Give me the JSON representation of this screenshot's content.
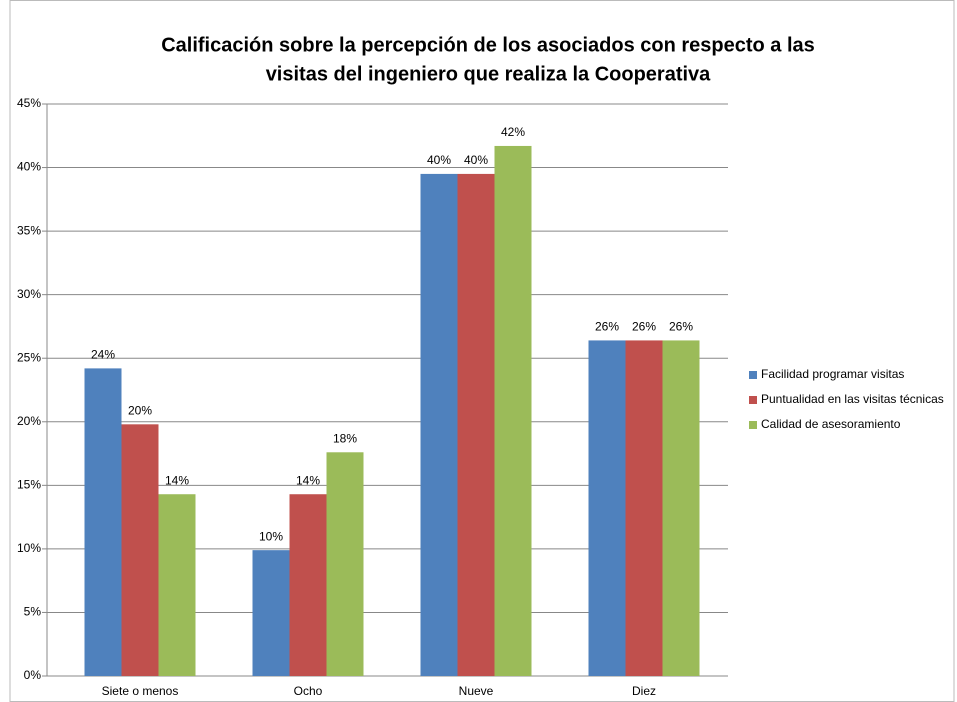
{
  "chart_data": {
    "type": "bar",
    "title": [
      "Calificación sobre la percepción  de los asociados con respecto a las",
      "visitas del ingeniero que realiza la Cooperativa"
    ],
    "categories": [
      "Siete o menos",
      "Ocho",
      "Nueve",
      "Diez"
    ],
    "series": [
      {
        "name": "Facilidad programar visitas",
        "color": "#4f81bd",
        "values": [
          24.2,
          9.9,
          39.5,
          26.4
        ],
        "value_labels": [
          "24%",
          "10%",
          "40%",
          "26%"
        ]
      },
      {
        "name": "Puntualidad en las visitas técnicas",
        "color": "#c0504d",
        "values": [
          19.8,
          14.3,
          39.5,
          26.4
        ],
        "value_labels": [
          "20%",
          "14%",
          "40%",
          "26%"
        ]
      },
      {
        "name": "Calidad de asesoramiento",
        "color": "#9bbb59",
        "values": [
          14.3,
          17.6,
          41.7,
          26.4
        ],
        "value_labels": [
          "14%",
          "18%",
          "42%",
          "26%"
        ]
      }
    ],
    "ylim": [
      0,
      45
    ],
    "yticks": [
      {
        "value": 0,
        "label": "0%"
      },
      {
        "value": 5,
        "label": "5%"
      },
      {
        "value": 10,
        "label": "10%"
      },
      {
        "value": 15,
        "label": "15%"
      },
      {
        "value": 20,
        "label": "20%"
      },
      {
        "value": 25,
        "label": "25%"
      },
      {
        "value": 30,
        "label": "30%"
      },
      {
        "value": 35,
        "label": "35%"
      },
      {
        "value": 40,
        "label": "40%"
      },
      {
        "value": 45,
        "label": "45%"
      }
    ],
    "grid": true,
    "legend": "right"
  }
}
